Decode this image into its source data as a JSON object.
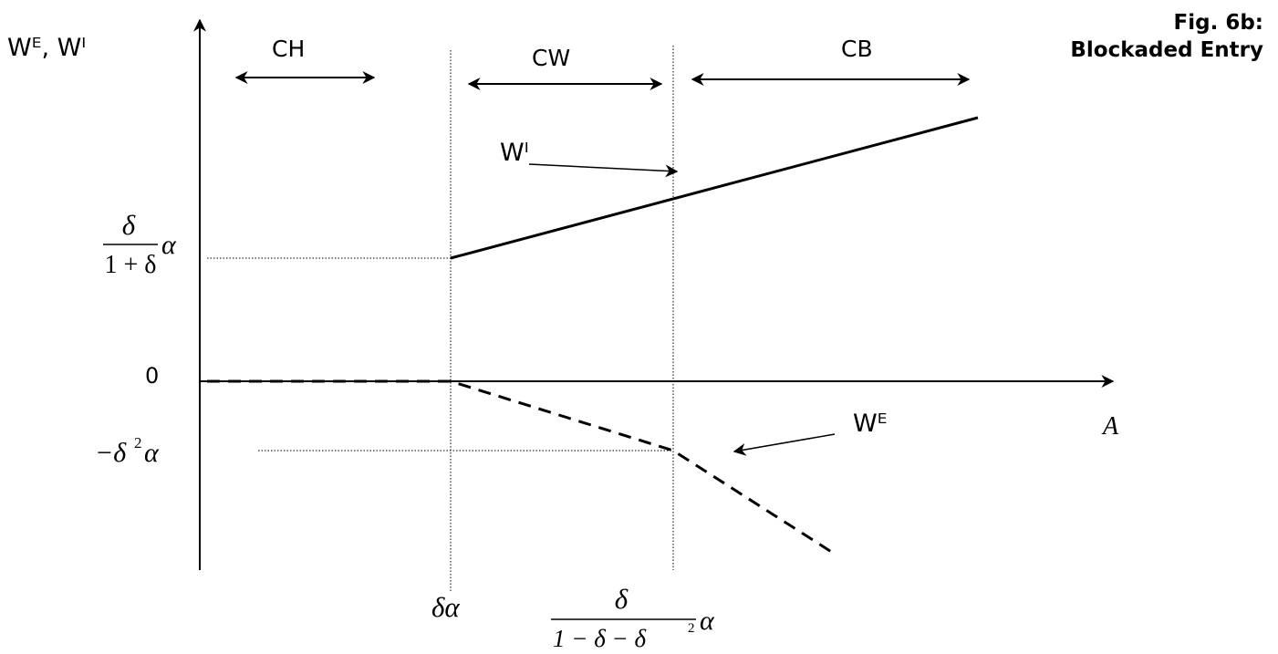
{
  "figure": {
    "title_line1": "Fig. 6b:",
    "title_line2": "Blockaded Entry"
  },
  "axes": {
    "y_label": "Wᴱ, Wᴵ",
    "x_label": "A",
    "origin_label": "0"
  },
  "regions": [
    {
      "label": "CH"
    },
    {
      "label": "CW"
    },
    {
      "label": "CB"
    }
  ],
  "curves": {
    "incumbent": {
      "label": "Wᴵ",
      "style": "solid"
    },
    "entrant": {
      "label": "Wᴱ",
      "style": "dashed"
    }
  },
  "y_ticks": {
    "upper": {
      "numerator": "δ",
      "denominator": "1 + δ",
      "suffix": "α"
    },
    "lower": {
      "text": "−δ",
      "exponent": "2",
      "suffix": "α"
    }
  },
  "x_ticks": {
    "first": {
      "text": "δα"
    },
    "second": {
      "numerator": "δ",
      "denominator": "1 − δ − δ",
      "den_exponent": "2",
      "suffix": "α"
    }
  },
  "colors": {
    "ink": "#000000",
    "background": "#ffffff"
  }
}
